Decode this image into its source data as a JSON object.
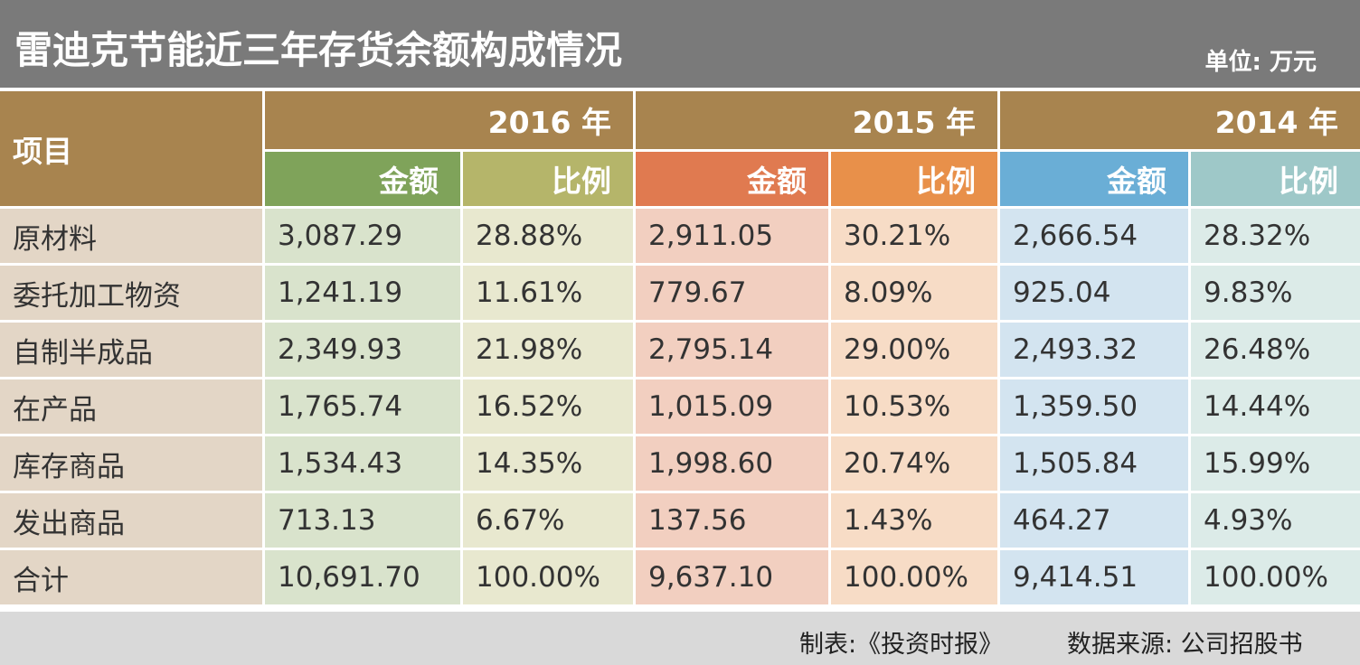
{
  "header": {
    "title": "雷迪克节能近三年存货余额构成情况",
    "unit": "单位: 万元"
  },
  "table": {
    "item_header": "项目",
    "columns": [
      {
        "year": "2016 年",
        "amount": "金额",
        "ratio": "比例"
      },
      {
        "year": "2015 年",
        "amount": "金额",
        "ratio": "比例"
      },
      {
        "year": "2014 年",
        "amount": "金额",
        "ratio": "比例"
      }
    ],
    "rows": [
      [
        "原材料",
        "3,087.29",
        "28.88%",
        "2,911.05",
        "30.21%",
        "2,666.54",
        "28.32%"
      ],
      [
        "委托加工物资",
        "1,241.19",
        "11.61%",
        "779.67",
        "8.09%",
        "925.04",
        "9.83%"
      ],
      [
        "自制半成品",
        "2,349.93",
        "21.98%",
        "2,795.14",
        "29.00%",
        "2,493.32",
        "26.48%"
      ],
      [
        "在产品",
        "1,765.74",
        "16.52%",
        "1,015.09",
        "10.53%",
        "1,359.50",
        "14.44%"
      ],
      [
        "库存商品",
        "1,534.43",
        "14.35%",
        "1,998.60",
        "20.74%",
        "1,505.84",
        "15.99%"
      ],
      [
        "发出商品",
        "713.13",
        "6.67%",
        "137.56",
        "1.43%",
        "464.27",
        "4.93%"
      ],
      [
        "合计",
        "10,691.70",
        "100.00%",
        "9,637.10",
        "100.00%",
        "9,414.51",
        "100.00%"
      ]
    ]
  },
  "footer": {
    "credit": "制表:《投资时报》",
    "source": "数据来源: 公司招股书"
  }
}
